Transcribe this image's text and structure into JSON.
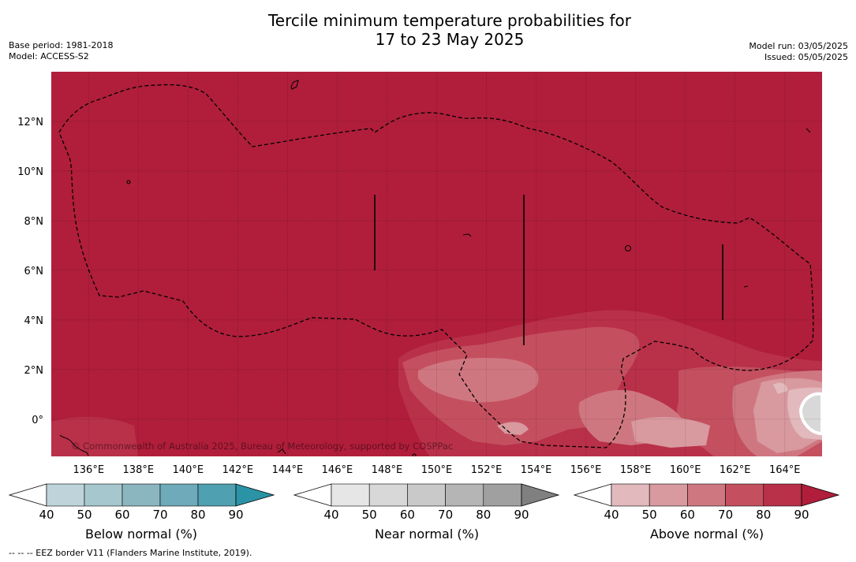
{
  "title_line1": "Tercile minimum temperature probabilities for",
  "title_line2": "17 to 23 May 2025",
  "base_period": "Base period: 1981-2018",
  "model": "Model: ACCESS-S2",
  "model_run": "Model run: 03/05/2025",
  "issued": "Issued: 05/05/2025",
  "copyright": "© Commonwealth of Australia 2025, Bureau of Meteorology, supported by COSPPac",
  "footnote": "--  --  -- EEZ border V11 (Flanders Marine Institute, 2019).",
  "map": {
    "lon_range": [
      134.5,
      165.5
    ],
    "lat_range": [
      -1.5,
      14
    ],
    "lon_ticks": [
      "136°E",
      "138°E",
      "140°E",
      "142°E",
      "144°E",
      "146°E",
      "148°E",
      "150°E",
      "152°E",
      "154°E",
      "156°E",
      "158°E",
      "160°E",
      "162°E",
      "164°E"
    ],
    "lat_ticks": [
      "12°N",
      "10°N",
      "8°N",
      "6°N",
      "4°N",
      "2°N",
      "0°"
    ],
    "background_category": "Above normal 80-90%",
    "colors": {
      "above_90": "#b01e3b",
      "above_80": "#b93049",
      "above_70": "#c4505f",
      "above_60": "#cf7781",
      "above_50": "#d8999f",
      "above_40": "#e2b9bd",
      "near_normal": "#d8d8d8"
    }
  },
  "colorbars": [
    {
      "name": "below",
      "title": "Below normal (%)",
      "ticks": [
        "40",
        "50",
        "60",
        "70",
        "80",
        "90"
      ],
      "colors": [
        "#ffffff",
        "#bed4da",
        "#a6c7cd",
        "#8bb6c0",
        "#6eaab9",
        "#4fa0b0",
        "#2b93a6"
      ]
    },
    {
      "name": "near",
      "title": "Near normal (%)",
      "ticks": [
        "40",
        "50",
        "60",
        "70",
        "80",
        "90"
      ],
      "colors": [
        "#ffffff",
        "#e6e6e6",
        "#d8d8d8",
        "#c9c9c9",
        "#b5b5b5",
        "#a0a0a0",
        "#808080"
      ]
    },
    {
      "name": "above",
      "title": "Above normal (%)",
      "ticks": [
        "40",
        "50",
        "60",
        "70",
        "80",
        "90"
      ],
      "colors": [
        "#ffffff",
        "#e2b9bd",
        "#d8999f",
        "#cf7781",
        "#c4505f",
        "#b93049",
        "#b01e3b"
      ]
    }
  ]
}
